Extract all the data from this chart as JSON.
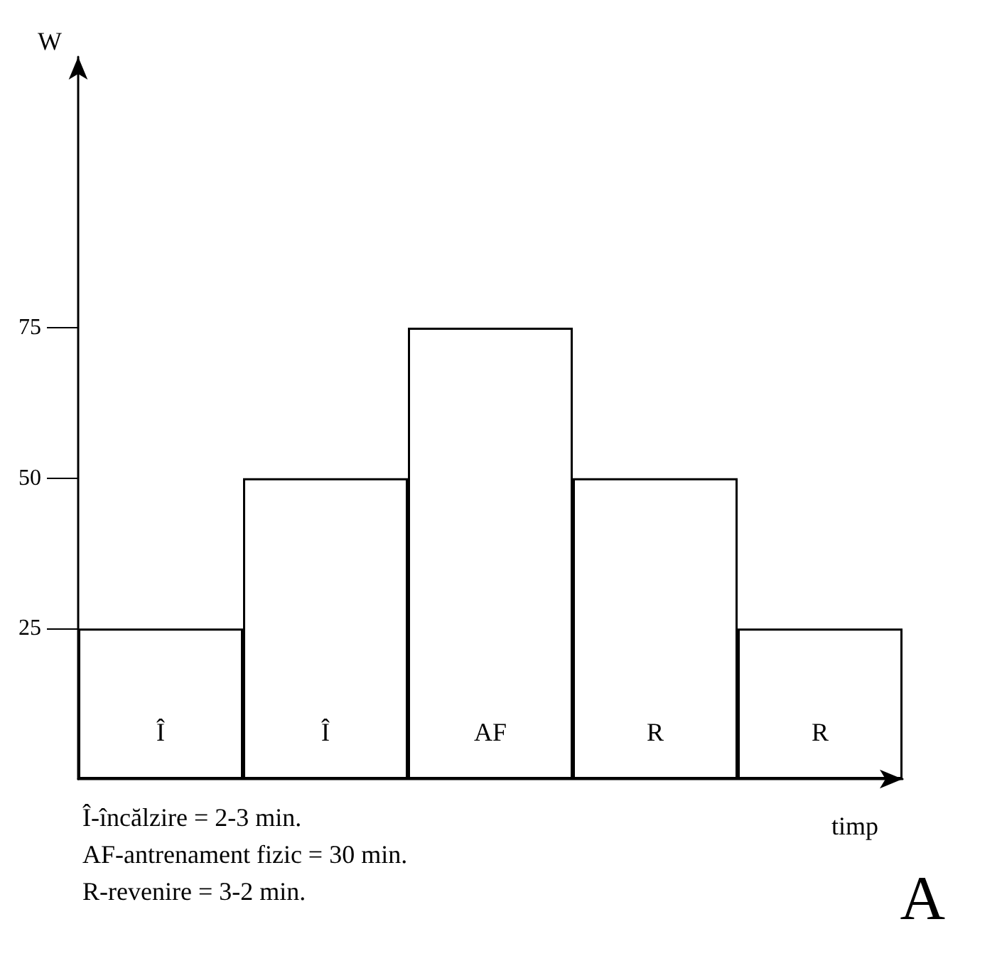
{
  "chart_data": {
    "type": "bar",
    "categories": [
      "Î",
      "Î",
      "AF",
      "R",
      "R"
    ],
    "values": [
      25,
      50,
      75,
      50,
      25
    ],
    "color": "#ffffff",
    "ylim": [
      0,
      120
    ],
    "yticks": [
      25,
      50,
      75
    ],
    "xlabel": "timp",
    "ylabel": "W",
    "grid": false,
    "annotations": [
      "Î-încălzire = 2-3 min.",
      "AF-antrenament fizic = 30 min.",
      "R-revenire = 3-2 min.",
      "A"
    ]
  }
}
